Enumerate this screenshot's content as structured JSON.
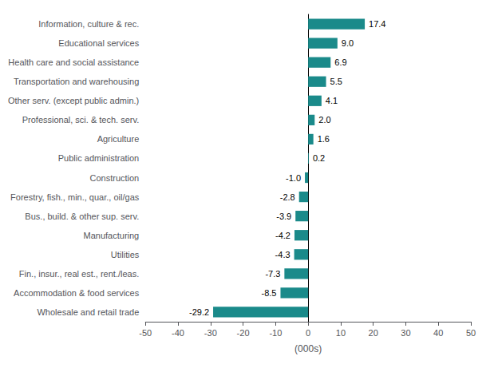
{
  "chart_data": {
    "type": "bar",
    "orientation": "horizontal",
    "categories": [
      "Information, culture & rec.",
      "Educational services",
      "Health care and social assistance",
      "Transportation and warehousing",
      "Other serv. (except public admin.)",
      "Professional, sci. & tech. serv.",
      "Agriculture",
      "Public administration",
      "Construction",
      "Forestry, fish., min., quar., oil/gas",
      "Bus., build. & other sup. serv.",
      "Manufacturing",
      "Utilities",
      "Fin., insur., real est., rent./leas.",
      "Accommodation & food services",
      "Wholesale and retail trade"
    ],
    "values": [
      17.4,
      9.0,
      6.9,
      5.5,
      4.1,
      2.0,
      1.6,
      0.2,
      -1.0,
      -2.8,
      -3.9,
      -4.2,
      -4.3,
      -7.3,
      -8.5,
      -29.2
    ],
    "value_labels": [
      "17.4",
      "9.0",
      "6.9",
      "5.5",
      "4.1",
      "2.0",
      "1.6",
      "0.2",
      "-1.0",
      "-2.8",
      "-3.9",
      "-4.2",
      "-4.3",
      "-7.3",
      "-8.5",
      "-29.2"
    ],
    "color": "#1a8a8a",
    "xlabel": "(000s)",
    "xlim": [
      -50,
      50
    ],
    "xticks": [
      -50,
      -40,
      -30,
      -20,
      -10,
      0,
      10,
      20,
      30,
      40,
      50
    ],
    "data_labels": true,
    "grid": false
  }
}
